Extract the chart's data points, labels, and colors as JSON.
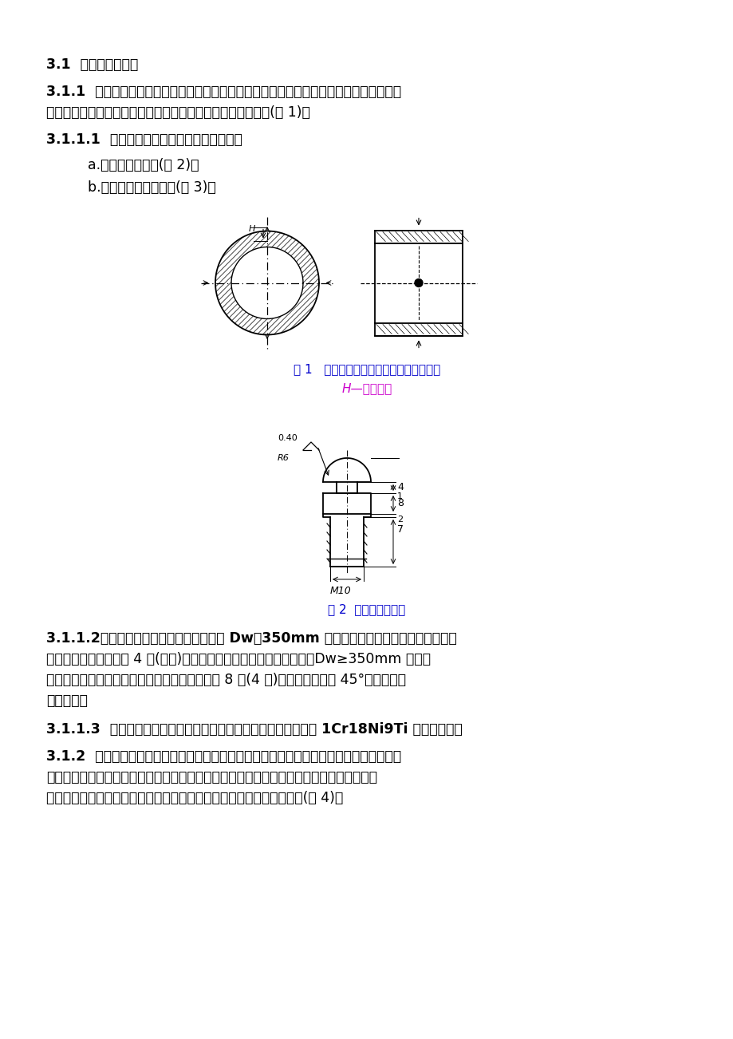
{
  "bg_color": "#ffffff",
  "text_color": "#000000",
  "blue_color": "#0000cc",
  "magenta_color": "#cc00cc",
  "fig_caption1": "图 1   蒸汽管道测量截面上蠕变测点的布置",
  "fig_caption1_sub": "H—测点高度",
  "fig_caption2": "图 2  球头蠕变测点头",
  "para_31": "3.1  蠕变测量方法：",
  "para_311_line1": "3.1.1  蠕变测点的测量用千分尺测量蠕变测量截面直径的方法。为实现每次测量都在固定位",
  "para_311_line2": "置上，需在要测量截面的钢管直径两端的外表面焊上蠕变测点(图 1)。",
  "para_3111": "3.1.1.1  蠕变测点可选用下述两种形式之一。",
  "para_a": "    a.球头蠕变测点头(图 2)。",
  "para_b": "    b.自动对心蠕变测点头(图 3)。",
  "para_3112_line1": "3.1.1.2每个测量截面测点的数量，对外径 Dw＜350mm 的蒸汽管道和联箱，每个蠕变测量截",
  "para_3112_line2": "面的蠕变测点至少应有 4 个(两对)，分布在两相互垂直的直径端点上。Dw≥350mm 的蒸汽",
  "para_3112_line3": "管道和联箱，每个蠕变测量截面的蠕变测点应有 8 个(4 对)，分布在互相成 45°的截面直径",
  "para_3112_line4": "的端点上。",
  "para_3113": "3.1.1.3  测点座应用与管道及联箱相同的钢材制成。测点头必须用 1Cr18Ni9Ti 不锈钢制成。",
  "para_312_line1": "3.1.2  蠕变测量标记的测量方法：用特制的钢带尺缠绕在钢管或联箱体测量截面外表面上，",
  "para_312_line2": "测量该截面的周长的方法。同样，为保证每次测量都在固定位置上，需在要测量截面的钢管",
  "para_312_line3": "或联箱体的外表面上按钢带尺的宽度打上两排互相平行的球面压痕标记(图 4)。"
}
